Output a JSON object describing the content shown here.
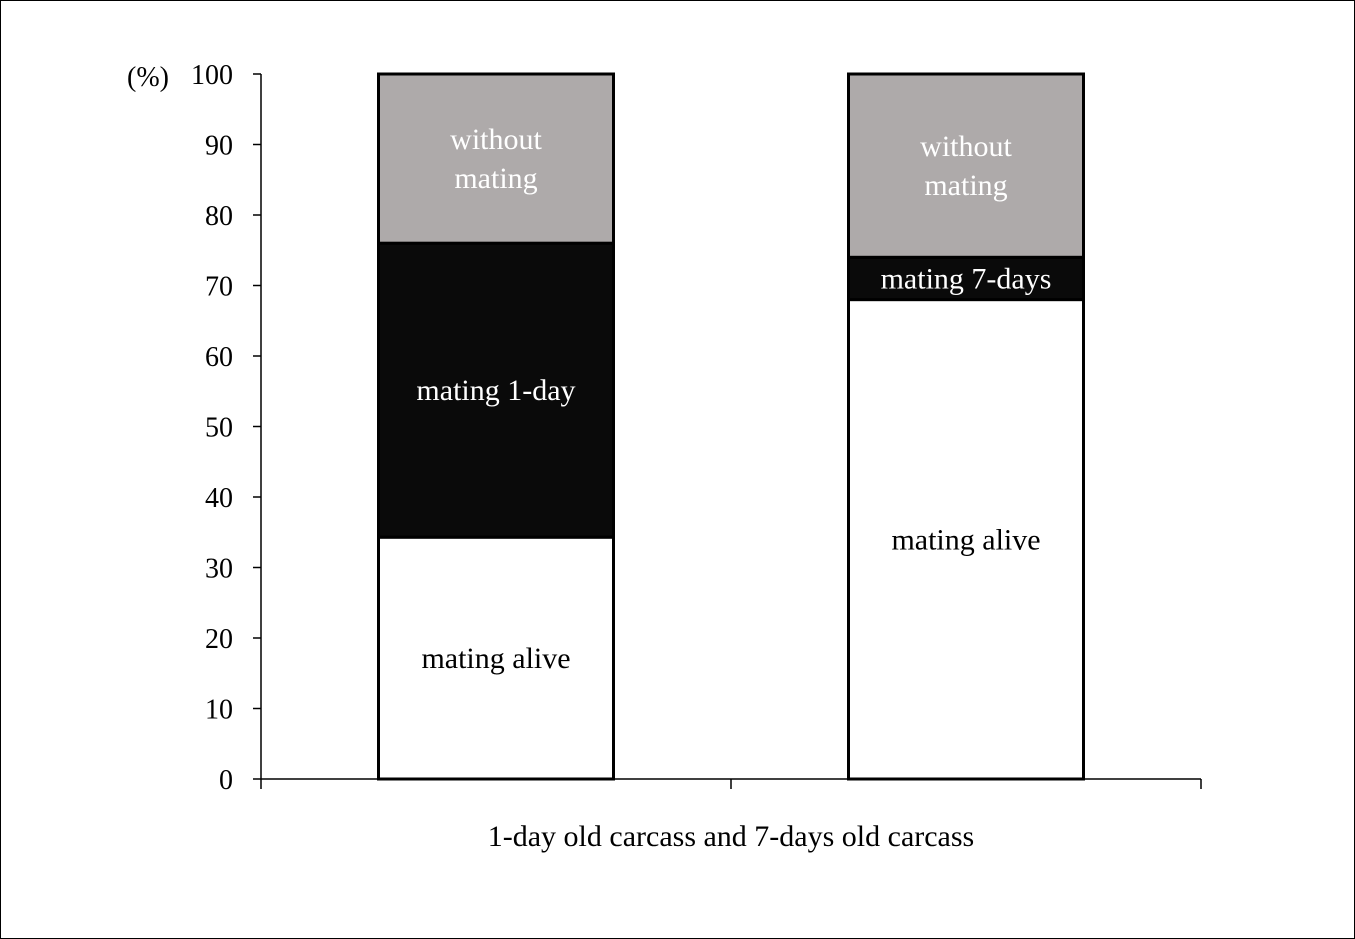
{
  "chart_data": {
    "type": "bar",
    "stacked": true,
    "categories": [
      "",
      ""
    ],
    "xlabel": "1-day old carcass  and 7-days old carcass",
    "ylabel": "(%)",
    "ylim": [
      0,
      100
    ],
    "yticks": [
      0,
      10,
      20,
      30,
      40,
      50,
      60,
      70,
      80,
      90,
      100
    ],
    "grid": false,
    "legend": "none",
    "bars": [
      {
        "segments": [
          {
            "label_lines": [
              "mating alive"
            ],
            "value": 34.3,
            "color": "#ffffff",
            "text_color": "#000000"
          },
          {
            "label_lines": [
              "mating 1-day"
            ],
            "value": 41.7,
            "color": "#0a0a0a",
            "text_color": "#ffffff"
          },
          {
            "label_lines": [
              "without",
              "mating"
            ],
            "value": 24.0,
            "color": "#aeaaaa",
            "text_color": "#ffffff"
          }
        ]
      },
      {
        "segments": [
          {
            "label_lines": [
              "mating alive"
            ],
            "value": 68.0,
            "color": "#ffffff",
            "text_color": "#000000"
          },
          {
            "label_lines": [
              "mating 7-days"
            ],
            "value": 6.0,
            "color": "#0a0a0a",
            "text_color": "#ffffff"
          },
          {
            "label_lines": [
              "without",
              "mating"
            ],
            "value": 26.0,
            "color": "#aeaaaa",
            "text_color": "#ffffff"
          }
        ]
      }
    ]
  }
}
